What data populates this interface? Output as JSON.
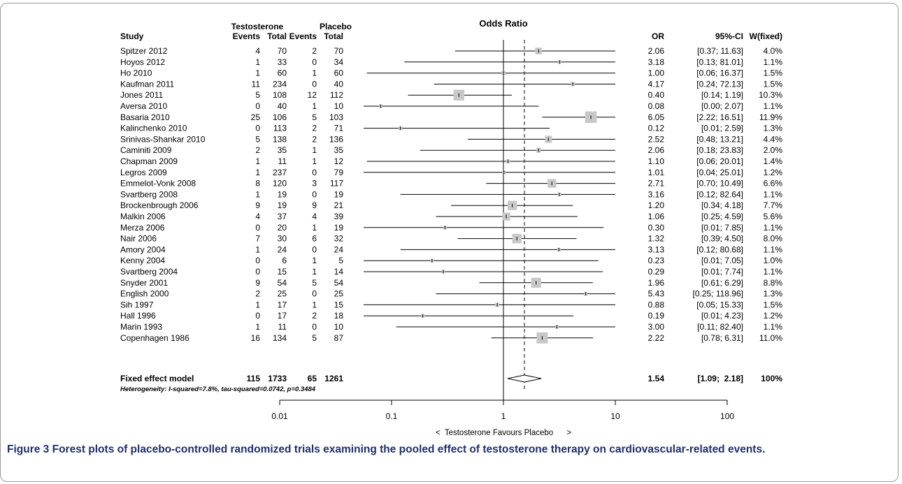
{
  "chart_data": {
    "type": "forest",
    "title": "Odds Ratio",
    "columns": {
      "study": "Study",
      "group1": "Testosterone",
      "group2": "Placebo",
      "events": "Events",
      "total": "Total",
      "or": "OR",
      "ci": "95%-CI",
      "weight": "W(fixed)"
    },
    "studies": [
      {
        "name": "Spitzer 2012",
        "e1": "4",
        "n1": "70",
        "e2": "2",
        "n2": "70",
        "or": 2.06,
        "lo": 0.37,
        "hi": 11.63,
        "or_text": "2.06",
        "ci_text": "[0.37; 11.63]",
        "w": "4.0%",
        "wv": 4.0
      },
      {
        "name": "Hoyos 2012",
        "e1": "1",
        "n1": "33",
        "e2": "0",
        "n2": "34",
        "or": 3.18,
        "lo": 0.13,
        "hi": 81.01,
        "or_text": "3.18",
        "ci_text": "[0.13; 81.01]",
        "w": "1.1%",
        "wv": 1.1
      },
      {
        "name": "Ho 2010",
        "e1": "1",
        "n1": "60",
        "e2": "1",
        "n2": "60",
        "or": 1.0,
        "lo": 0.06,
        "hi": 16.37,
        "or_text": "1.00",
        "ci_text": "[0.06; 16.37]",
        "w": "1.5%",
        "wv": 1.5
      },
      {
        "name": "Kaufman 2011",
        "e1": "11",
        "n1": "234",
        "e2": "0",
        "n2": "40",
        "or": 4.17,
        "lo": 0.24,
        "hi": 72.13,
        "or_text": "4.17",
        "ci_text": "[0.24; 72.13]",
        "w": "1.5%",
        "wv": 1.5
      },
      {
        "name": "Jones 2011",
        "e1": "5",
        "n1": "108",
        "e2": "12",
        "n2": "112",
        "or": 0.4,
        "lo": 0.14,
        "hi": 1.19,
        "or_text": "0.40",
        "ci_text": "[0.14;  1.19]",
        "w": "10.3%",
        "wv": 10.3
      },
      {
        "name": "Aversa 2010",
        "e1": "0",
        "n1": "40",
        "e2": "1",
        "n2": "10",
        "or": 0.08,
        "lo": 0.0,
        "hi": 2.07,
        "or_text": "0.08",
        "ci_text": "[0.00;  2.07]",
        "w": "1.1%",
        "wv": 1.1
      },
      {
        "name": "Basaria 2010",
        "e1": "25",
        "n1": "106",
        "e2": "5",
        "n2": "103",
        "or": 6.05,
        "lo": 2.22,
        "hi": 16.51,
        "or_text": "6.05",
        "ci_text": "[2.22; 16.51]",
        "w": "11.9%",
        "wv": 11.9
      },
      {
        "name": "Kalinchenko 2010",
        "e1": "0",
        "n1": "113",
        "e2": "2",
        "n2": "71",
        "or": 0.12,
        "lo": 0.01,
        "hi": 2.59,
        "or_text": "0.12",
        "ci_text": "[0.01;  2.59]",
        "w": "1.3%",
        "wv": 1.3
      },
      {
        "name": "Srinivas-Shankar 2010",
        "e1": "5",
        "n1": "138",
        "e2": "2",
        "n2": "136",
        "or": 2.52,
        "lo": 0.48,
        "hi": 13.21,
        "or_text": "2.52",
        "ci_text": "[0.48; 13.21]",
        "w": "4.4%",
        "wv": 4.4
      },
      {
        "name": "Caminiti 2009",
        "e1": "2",
        "n1": "35",
        "e2": "1",
        "n2": "35",
        "or": 2.06,
        "lo": 0.18,
        "hi": 23.83,
        "or_text": "2.06",
        "ci_text": "[0.18; 23.83]",
        "w": "2.0%",
        "wv": 2.0
      },
      {
        "name": "Chapman 2009",
        "e1": "1",
        "n1": "11",
        "e2": "1",
        "n2": "12",
        "or": 1.1,
        "lo": 0.06,
        "hi": 20.01,
        "or_text": "1.10",
        "ci_text": "[0.06; 20.01]",
        "w": "1.4%",
        "wv": 1.4
      },
      {
        "name": "Legros 2009",
        "e1": "1",
        "n1": "237",
        "e2": "0",
        "n2": "79",
        "or": 1.01,
        "lo": 0.04,
        "hi": 25.01,
        "or_text": "1.01",
        "ci_text": "[0.04; 25.01]",
        "w": "1.2%",
        "wv": 1.2
      },
      {
        "name": "Emmelot-Vonk 2008",
        "e1": "8",
        "n1": "120",
        "e2": "3",
        "n2": "117",
        "or": 2.71,
        "lo": 0.7,
        "hi": 10.49,
        "or_text": "2.71",
        "ci_text": "[0.70; 10.49]",
        "w": "6.6%",
        "wv": 6.6
      },
      {
        "name": "Svartberg 2008",
        "e1": "1",
        "n1": "19",
        "e2": "0",
        "n2": "19",
        "or": 3.16,
        "lo": 0.12,
        "hi": 82.64,
        "or_text": "3.16",
        "ci_text": "[0.12; 82.64]",
        "w": "1.1%",
        "wv": 1.1
      },
      {
        "name": "Brockenbrough 2006",
        "e1": "9",
        "n1": "19",
        "e2": "9",
        "n2": "21",
        "or": 1.2,
        "lo": 0.34,
        "hi": 4.18,
        "or_text": "1.20",
        "ci_text": "[0.34;  4.18]",
        "w": "7.7%",
        "wv": 7.7
      },
      {
        "name": "Malkin 2006",
        "e1": "4",
        "n1": "37",
        "e2": "4",
        "n2": "39",
        "or": 1.06,
        "lo": 0.25,
        "hi": 4.59,
        "or_text": "1.06",
        "ci_text": "[0.25;  4.59]",
        "w": "5.6%",
        "wv": 5.6
      },
      {
        "name": "Merza 2006",
        "e1": "0",
        "n1": "20",
        "e2": "1",
        "n2": "19",
        "or": 0.3,
        "lo": 0.01,
        "hi": 7.85,
        "or_text": "0.30",
        "ci_text": "[0.01;  7.85]",
        "w": "1.1%",
        "wv": 1.1
      },
      {
        "name": "Nair 2006",
        "e1": "7",
        "n1": "30",
        "e2": "6",
        "n2": "32",
        "or": 1.32,
        "lo": 0.39,
        "hi": 4.5,
        "or_text": "1.32",
        "ci_text": "[0.39;  4.50]",
        "w": "8.0%",
        "wv": 8.0
      },
      {
        "name": "Amory 2004",
        "e1": "1",
        "n1": "24",
        "e2": "0",
        "n2": "24",
        "or": 3.13,
        "lo": 0.12,
        "hi": 80.68,
        "or_text": "3.13",
        "ci_text": "[0.12; 80.68]",
        "w": "1.1%",
        "wv": 1.1
      },
      {
        "name": "Kenny 2004",
        "e1": "0",
        "n1": "6",
        "e2": "1",
        "n2": "5",
        "or": 0.23,
        "lo": 0.01,
        "hi": 7.05,
        "or_text": "0.23",
        "ci_text": "[0.01;  7.05]",
        "w": "1.0%",
        "wv": 1.0
      },
      {
        "name": "Svartberg 2004",
        "e1": "0",
        "n1": "15",
        "e2": "1",
        "n2": "14",
        "or": 0.29,
        "lo": 0.01,
        "hi": 7.74,
        "or_text": "0.29",
        "ci_text": "[0.01;  7.74]",
        "w": "1.1%",
        "wv": 1.1
      },
      {
        "name": "Snyder 2001",
        "e1": "9",
        "n1": "54",
        "e2": "5",
        "n2": "54",
        "or": 1.96,
        "lo": 0.61,
        "hi": 6.29,
        "or_text": "1.96",
        "ci_text": "[0.61;  6.29]",
        "w": "8.8%",
        "wv": 8.8
      },
      {
        "name": "English 2000",
        "e1": "2",
        "n1": "25",
        "e2": "0",
        "n2": "25",
        "or": 5.43,
        "lo": 0.25,
        "hi": 118.96,
        "or_text": "5.43",
        "ci_text": "[0.25; 118.96]",
        "w": "1.3%",
        "wv": 1.3
      },
      {
        "name": "Sih 1997",
        "e1": "1",
        "n1": "17",
        "e2": "1",
        "n2": "15",
        "or": 0.88,
        "lo": 0.05,
        "hi": 15.33,
        "or_text": "0.88",
        "ci_text": "[0.05; 15.33]",
        "w": "1.5%",
        "wv": 1.5
      },
      {
        "name": "Hall 1996",
        "e1": "0",
        "n1": "17",
        "e2": "2",
        "n2": "18",
        "or": 0.19,
        "lo": 0.01,
        "hi": 4.23,
        "or_text": "0.19",
        "ci_text": "[0.01;  4.23]",
        "w": "1.2%",
        "wv": 1.2
      },
      {
        "name": "Marin 1993",
        "e1": "1",
        "n1": "11",
        "e2": "0",
        "n2": "10",
        "or": 3.0,
        "lo": 0.11,
        "hi": 82.4,
        "or_text": "3.00",
        "ci_text": "[0.11; 82.40]",
        "w": "1.1%",
        "wv": 1.1
      },
      {
        "name": "Copenhagen 1986",
        "e1": "16",
        "n1": "134",
        "e2": "5",
        "n2": "87",
        "or": 2.22,
        "lo": 0.78,
        "hi": 6.31,
        "or_text": "2.22",
        "ci_text": "[0.78;  6.31]",
        "w": "11.0%",
        "wv": 11.0
      }
    ],
    "pooled": {
      "name": "Fixed effect model",
      "e1": "115",
      "n1": "1733",
      "e2": "65",
      "n2": "1261",
      "or": 1.54,
      "lo": 1.09,
      "hi": 2.18,
      "or_text": "1.54",
      "ci_text": "[1.09;  2.18]",
      "w": "100%"
    },
    "heterogeneity": "Heterogeneity: I-squared=7.8%, tau-squared=0.0742, p=0.3484",
    "x_axis": {
      "scale": "log",
      "range": [
        0.01,
        100
      ],
      "ticks": [
        0.01,
        0.1,
        1,
        10,
        100
      ],
      "tick_labels": [
        "0.01",
        "0.1",
        "1",
        "10",
        "100"
      ],
      "label": "<  Testosterone Favours Placebo      >"
    },
    "reference_line": 1,
    "colors": {
      "box": "#c8c8c8",
      "caption": "#1f2f6b",
      "frame": "#9a9a9a"
    }
  },
  "caption": {
    "label": "Figure 3",
    "text": "Forest plots of placebo-controlled randomized trials examining the pooled effect of testosterone therapy on cardiovascular-related events."
  }
}
